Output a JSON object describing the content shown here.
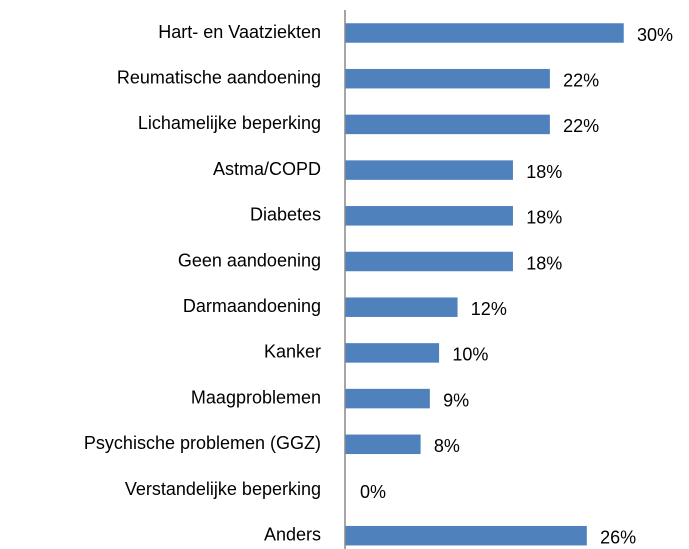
{
  "chart_data": {
    "type": "barh",
    "categories": [
      "Hart- en Vaatziekten",
      "Reumatische aandoening",
      "Lichamelijke beperking",
      "Astma/COPD",
      "Diabetes",
      "Geen aandoening",
      "Darmaandoening",
      "Kanker",
      "Maagproblemen",
      "Psychische problemen (GGZ)",
      "Verstandelijke beperking",
      "Anders"
    ],
    "values": [
      30,
      22,
      22,
      18,
      18,
      18,
      12,
      10,
      9,
      8,
      0,
      26
    ],
    "value_labels": [
      "30%",
      "22%",
      "22%",
      "18%",
      "18%",
      "18%",
      "12%",
      "10%",
      "9%",
      "8%",
      "0%",
      "26%"
    ],
    "color": "#4f81bd"
  }
}
